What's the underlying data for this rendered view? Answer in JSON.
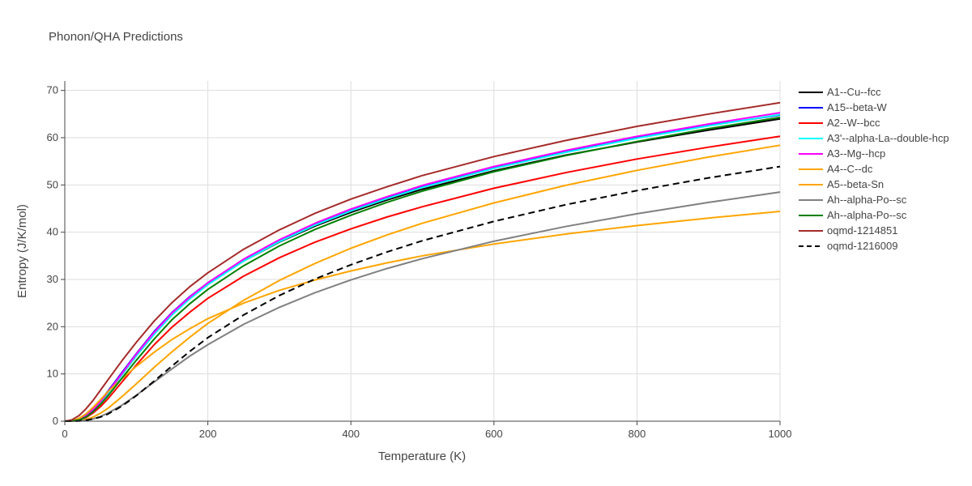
{
  "chart_data": {
    "type": "line",
    "title": "Phonon/QHA Predictions",
    "xlabel": "Temperature (K)",
    "ylabel": "Entropy (J/K/mol)",
    "xlim": [
      0,
      1000
    ],
    "ylim": [
      0,
      72
    ],
    "xticks": [
      0,
      200,
      400,
      600,
      800,
      1000
    ],
    "yticks": [
      0,
      10,
      20,
      30,
      40,
      50,
      60,
      70
    ],
    "grid": true,
    "legend_position": "right",
    "x": [
      0,
      10,
      20,
      30,
      40,
      50,
      60,
      80,
      100,
      125,
      150,
      175,
      200,
      250,
      300,
      350,
      400,
      450,
      500,
      600,
      700,
      800,
      900,
      1000
    ],
    "series": [
      {
        "name": "A1--Cu--fcc",
        "color": "#000000",
        "dash": "solid",
        "values": [
          0,
          0.05,
          0.3,
          1.1,
          2.5,
          4.1,
          6.0,
          10.0,
          14.0,
          18.6,
          22.6,
          26.0,
          29.0,
          33.9,
          37.9,
          41.3,
          44.2,
          46.8,
          49.1,
          53.0,
          56.3,
          59.1,
          61.6,
          64.0
        ]
      },
      {
        "name": "A15--beta-W",
        "color": "#0000ff",
        "dash": "solid",
        "values": [
          0,
          0.1,
          0.4,
          1.3,
          2.7,
          4.4,
          6.3,
          10.3,
          14.3,
          19.0,
          23.0,
          26.4,
          29.3,
          34.2,
          38.3,
          41.7,
          44.7,
          47.3,
          49.6,
          53.6,
          57.0,
          60.0,
          62.6,
          64.8
        ]
      },
      {
        "name": "A2--W--bcc",
        "color": "#ff0000",
        "dash": "solid",
        "values": [
          0,
          0.05,
          0.3,
          0.8,
          1.8,
          3.1,
          4.7,
          8.3,
          11.9,
          16.2,
          19.9,
          23.1,
          26.0,
          30.7,
          34.6,
          37.9,
          40.7,
          43.2,
          45.4,
          49.3,
          52.6,
          55.5,
          58.0,
          60.3
        ]
      },
      {
        "name": "A3'--alpha-La--double-hcp",
        "color": "#00ffff",
        "dash": "solid",
        "values": [
          0,
          0.05,
          0.3,
          1.0,
          2.3,
          3.9,
          5.8,
          9.8,
          13.8,
          18.4,
          22.5,
          25.9,
          28.9,
          33.9,
          38.0,
          41.5,
          44.5,
          47.1,
          49.5,
          53.5,
          56.9,
          59.9,
          62.5,
          64.9
        ]
      },
      {
        "name": "A3--Mg--hcp",
        "color": "#ff00ff",
        "dash": "solid",
        "values": [
          0,
          0.05,
          0.3,
          1.1,
          2.5,
          4.2,
          6.1,
          10.1,
          14.2,
          18.8,
          22.9,
          26.3,
          29.3,
          34.3,
          38.4,
          41.9,
          44.9,
          47.5,
          49.9,
          53.9,
          57.3,
          60.3,
          62.9,
          65.3
        ]
      },
      {
        "name": "A4--C--dc",
        "color": "#ffa500",
        "dash": "solid",
        "values": [
          0,
          0.02,
          0.1,
          0.4,
          0.9,
          1.7,
          2.7,
          5.2,
          7.9,
          11.4,
          14.7,
          17.8,
          20.7,
          25.6,
          29.8,
          33.4,
          36.6,
          39.4,
          41.9,
          46.2,
          49.9,
          53.1,
          55.9,
          58.4
        ]
      },
      {
        "name": "A5--beta-Sn",
        "color": "#ffa500",
        "dash": "solid",
        "values": [
          0,
          0.1,
          0.6,
          1.6,
          3.0,
          4.6,
          6.2,
          9.0,
          11.6,
          14.6,
          17.3,
          19.6,
          21.7,
          25.0,
          27.7,
          29.9,
          31.8,
          33.5,
          35.0,
          37.5,
          39.6,
          41.4,
          43.0,
          44.4
        ]
      },
      {
        "name": "Ah--alpha-Po--sc",
        "color": "#808080",
        "dash": "solid",
        "values": [
          0,
          0.01,
          0.05,
          0.2,
          0.5,
          1.0,
          1.7,
          3.4,
          5.5,
          8.3,
          11.1,
          13.8,
          16.2,
          20.5,
          24.1,
          27.2,
          29.9,
          32.3,
          34.4,
          38.1,
          41.2,
          43.9,
          46.3,
          48.5
        ]
      },
      {
        "name": "Ah--alpha-Po--sc",
        "color": "#008000",
        "dash": "solid",
        "values": [
          0,
          0.05,
          0.25,
          0.9,
          2.1,
          3.6,
          5.3,
          9.1,
          12.9,
          17.4,
          21.5,
          24.9,
          27.9,
          32.9,
          37.1,
          40.6,
          43.6,
          46.3,
          48.7,
          52.8,
          56.2,
          59.2,
          61.9,
          64.3
        ]
      },
      {
        "name": "oqmd-1214851",
        "color": "#a52a2a",
        "dash": "solid",
        "values": [
          0,
          0.3,
          1.2,
          2.7,
          4.5,
          6.6,
          8.7,
          12.8,
          16.7,
          21.2,
          25.1,
          28.5,
          31.4,
          36.4,
          40.5,
          44.0,
          47.0,
          49.6,
          52.0,
          56.0,
          59.4,
          62.4,
          65.0,
          67.4
        ]
      },
      {
        "name": "oqmd-1216009",
        "color": "#000000",
        "dash": "dash",
        "values": [
          0,
          0.01,
          0.05,
          0.2,
          0.5,
          0.9,
          1.5,
          3.2,
          5.4,
          8.5,
          11.7,
          14.8,
          17.7,
          22.5,
          26.6,
          30.1,
          33.1,
          35.8,
          38.2,
          42.3,
          45.8,
          48.8,
          51.5,
          53.9
        ]
      }
    ]
  }
}
